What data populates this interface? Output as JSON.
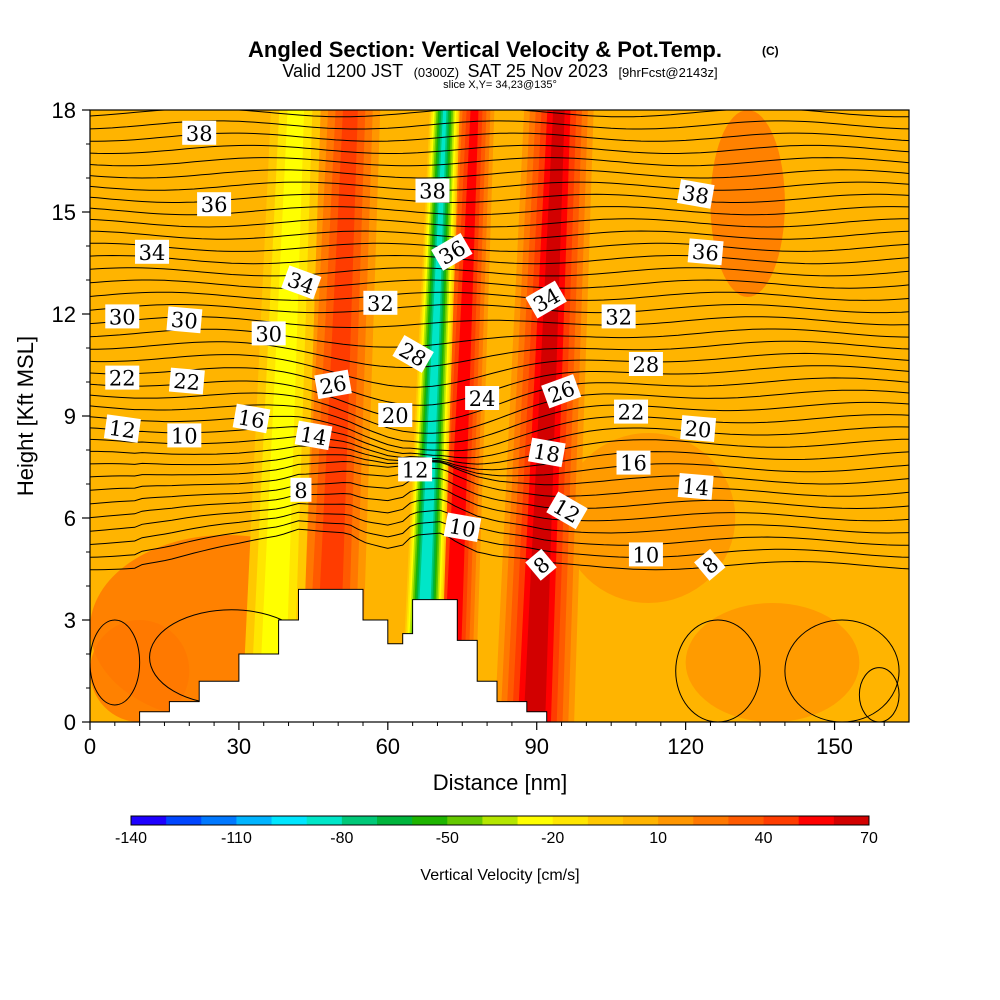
{
  "chart_data": {
    "type": "heatmap",
    "title": "Angled Section: Vertical Velocity & Pot.Temp.",
    "title_mark": "(C)",
    "subtitle": {
      "prefix": "Valid 1200 JST",
      "utc": "(0300Z)",
      "date": "SAT 25 Nov 2023",
      "fcst": "[9hrFcst@2143z]"
    },
    "slice": "slice X,Y= 34,23@135°",
    "xlabel": "Distance [nm]",
    "ylabel": "Height [Kft MSL]",
    "xlim": [
      0,
      165
    ],
    "ylim": [
      0,
      18
    ],
    "x_ticks": [
      0,
      30,
      60,
      90,
      120,
      150
    ],
    "y_ticks": [
      0,
      3,
      6,
      9,
      12,
      15,
      18
    ],
    "colorbar": {
      "label": "Vertical Velocity [cm/s]",
      "min": -140,
      "max": 70,
      "step": 10,
      "tick_labels": [
        -140,
        -110,
        -80,
        -50,
        -20,
        10,
        40,
        70
      ],
      "colors": [
        "#1e00ff",
        "#0046ff",
        "#0078ff",
        "#00b4ff",
        "#00e6ff",
        "#00e6c8",
        "#00c878",
        "#00b43c",
        "#1eb400",
        "#64c800",
        "#b4e600",
        "#ffff00",
        "#ffe600",
        "#ffc800",
        "#ffb400",
        "#ff9600",
        "#ff7800",
        "#ff5a00",
        "#ff3c00",
        "#ff0000",
        "#d20000",
        "#a00032",
        "#82006e",
        "#5a0096"
      ]
    },
    "terrain_kft": [
      [
        10,
        0.3
      ],
      [
        16,
        0.6
      ],
      [
        22,
        1.2
      ],
      [
        30,
        2.0
      ],
      [
        38,
        3.0
      ],
      [
        42,
        3.9
      ],
      [
        52,
        3.9
      ],
      [
        55,
        3.0
      ],
      [
        60,
        2.3
      ],
      [
        63,
        2.6
      ],
      [
        65,
        3.6
      ],
      [
        71,
        3.6
      ],
      [
        74,
        2.4
      ],
      [
        78,
        1.2
      ],
      [
        82,
        0.6
      ],
      [
        88,
        0.3
      ],
      [
        92,
        0.0
      ]
    ],
    "updraft_bands": [
      {
        "center_nm": 50,
        "width_nm": 6,
        "value": 40
      },
      {
        "center_nm": 75,
        "width_nm": 4,
        "value": 50
      },
      {
        "center_nm": 92,
        "width_nm": 7,
        "value": 60
      }
    ],
    "downdraft_bands": [
      {
        "center_nm": 39,
        "width_nm": 5,
        "value": -30
      },
      {
        "center_nm": 69,
        "width_nm": 3,
        "value": -90
      }
    ],
    "theta_labels": [
      {
        "text": "38",
        "x": 22,
        "y": 17.3,
        "rot": 0
      },
      {
        "text": "36",
        "x": 25,
        "y": 15.2,
        "rot": 0
      },
      {
        "text": "34",
        "x": 12.5,
        "y": 13.8,
        "rot": 0
      },
      {
        "text": "30",
        "x": 6.5,
        "y": 11.9,
        "rot": 0
      },
      {
        "text": "30",
        "x": 19,
        "y": 11.8,
        "rot": 5
      },
      {
        "text": "30",
        "x": 36,
        "y": 11.4,
        "rot": 0
      },
      {
        "text": "22",
        "x": 6.5,
        "y": 10.1,
        "rot": 0
      },
      {
        "text": "22",
        "x": 19.5,
        "y": 10.0,
        "rot": 5
      },
      {
        "text": "12",
        "x": 6.5,
        "y": 8.6,
        "rot": 8
      },
      {
        "text": "10",
        "x": 19,
        "y": 8.4,
        "rot": 0
      },
      {
        "text": "16",
        "x": 32.5,
        "y": 8.9,
        "rot": 10
      },
      {
        "text": "14",
        "x": 45,
        "y": 8.4,
        "rot": 10
      },
      {
        "text": "8",
        "x": 42.5,
        "y": 6.8,
        "rot": 0
      },
      {
        "text": "34",
        "x": 42.5,
        "y": 12.9,
        "rot": 20
      },
      {
        "text": "26",
        "x": 49,
        "y": 9.9,
        "rot": -10
      },
      {
        "text": "32",
        "x": 58.5,
        "y": 12.3,
        "rot": 0
      },
      {
        "text": "20",
        "x": 61.5,
        "y": 9.0,
        "rot": 0
      },
      {
        "text": "28",
        "x": 65,
        "y": 10.8,
        "rot": 30
      },
      {
        "text": "12",
        "x": 65.5,
        "y": 7.4,
        "rot": 0
      },
      {
        "text": "10",
        "x": 75,
        "y": 5.7,
        "rot": 10
      },
      {
        "text": "38",
        "x": 69,
        "y": 15.6,
        "rot": 0
      },
      {
        "text": "36",
        "x": 73,
        "y": 13.8,
        "rot": -30
      },
      {
        "text": "24",
        "x": 79,
        "y": 9.5,
        "rot": 0
      },
      {
        "text": "34",
        "x": 92,
        "y": 12.4,
        "rot": -30
      },
      {
        "text": "26",
        "x": 95,
        "y": 9.7,
        "rot": -20
      },
      {
        "text": "18",
        "x": 92,
        "y": 7.9,
        "rot": 10
      },
      {
        "text": "12",
        "x": 96,
        "y": 6.2,
        "rot": 30
      },
      {
        "text": "8",
        "x": 91,
        "y": 4.6,
        "rot": -40
      },
      {
        "text": "32",
        "x": 106.5,
        "y": 11.9,
        "rot": 0
      },
      {
        "text": "28",
        "x": 112,
        "y": 10.5,
        "rot": 0
      },
      {
        "text": "22",
        "x": 109,
        "y": 9.1,
        "rot": 0
      },
      {
        "text": "16",
        "x": 109.5,
        "y": 7.6,
        "rot": 0
      },
      {
        "text": "20",
        "x": 122.5,
        "y": 8.6,
        "rot": 5
      },
      {
        "text": "14",
        "x": 122,
        "y": 6.9,
        "rot": 5
      },
      {
        "text": "10",
        "x": 112,
        "y": 4.9,
        "rot": 0
      },
      {
        "text": "38",
        "x": 122,
        "y": 15.5,
        "rot": 10
      },
      {
        "text": "36",
        "x": 124,
        "y": 13.8,
        "rot": 5
      },
      {
        "text": "8",
        "x": 125,
        "y": 4.6,
        "rot": -40
      }
    ]
  }
}
